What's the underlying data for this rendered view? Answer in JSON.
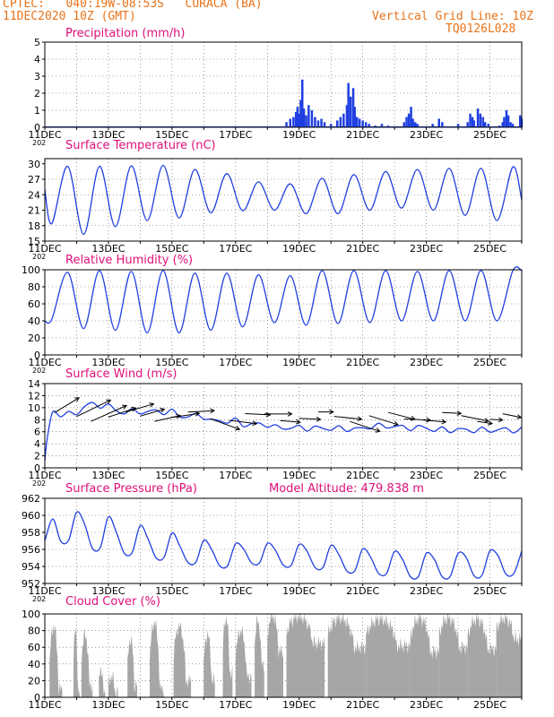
{
  "header": {
    "line1_left": "CPTEC:   040:19W-08:53S   CURACA (BA)",
    "line2_left": "11DEC2020 10Z (GMT)",
    "line1_right": "Vertical Grid Line: 10Z",
    "line2_right": "TQ0126L028"
  },
  "colors": {
    "header": "#e8731a",
    "title": "#e0107a",
    "line": "#1f3fe0",
    "bar": "#1f3fe0",
    "cloud": "#a6a6a6",
    "arrow": "#000000"
  },
  "x_axis": {
    "labels": [
      "11DEC",
      "13DEC",
      "15DEC",
      "17DEC",
      "19DEC",
      "21DEC",
      "23DEC",
      "25DEC"
    ],
    "stub": "202"
  },
  "chart_data": [
    {
      "id": "precip",
      "type": "bar",
      "title": "Precipitation (mm/h)",
      "ylim": [
        0,
        5
      ],
      "yticks": [
        0,
        1,
        2,
        3,
        4,
        5
      ],
      "x_days": [
        0,
        15
      ],
      "bars": [
        [
          7.6,
          0.3
        ],
        [
          7.72,
          0.5
        ],
        [
          7.82,
          0.6
        ],
        [
          7.9,
          0.9
        ],
        [
          7.95,
          1.2
        ],
        [
          8.0,
          0.8
        ],
        [
          8.05,
          1.6
        ],
        [
          8.1,
          2.8
        ],
        [
          8.15,
          1.1
        ],
        [
          8.22,
          0.7
        ],
        [
          8.3,
          1.3
        ],
        [
          8.4,
          1.0
        ],
        [
          8.5,
          0.6
        ],
        [
          8.6,
          0.4
        ],
        [
          8.7,
          0.5
        ],
        [
          8.8,
          0.3
        ],
        [
          9.0,
          0.2
        ],
        [
          9.2,
          0.4
        ],
        [
          9.3,
          0.6
        ],
        [
          9.4,
          0.8
        ],
        [
          9.5,
          1.3
        ],
        [
          9.55,
          2.6
        ],
        [
          9.62,
          1.8
        ],
        [
          9.7,
          2.3
        ],
        [
          9.75,
          1.2
        ],
        [
          9.82,
          0.6
        ],
        [
          9.9,
          0.5
        ],
        [
          10.0,
          0.4
        ],
        [
          10.1,
          0.3
        ],
        [
          10.2,
          0.2
        ],
        [
          10.4,
          0.1
        ],
        [
          10.6,
          0.2
        ],
        [
          10.8,
          0.1
        ],
        [
          11.3,
          0.3
        ],
        [
          11.38,
          0.6
        ],
        [
          11.45,
          0.8
        ],
        [
          11.52,
          1.2
        ],
        [
          11.58,
          0.5
        ],
        [
          11.65,
          0.3
        ],
        [
          11.72,
          0.2
        ],
        [
          12.2,
          0.2
        ],
        [
          12.4,
          0.5
        ],
        [
          12.5,
          0.3
        ],
        [
          13.0,
          0.2
        ],
        [
          13.3,
          0.3
        ],
        [
          13.38,
          0.8
        ],
        [
          13.45,
          0.6
        ],
        [
          13.5,
          0.4
        ],
        [
          13.62,
          1.1
        ],
        [
          13.7,
          0.8
        ],
        [
          13.78,
          0.6
        ],
        [
          13.85,
          0.3
        ],
        [
          13.95,
          0.2
        ],
        [
          14.3,
          0.1
        ],
        [
          14.4,
          0.3
        ],
        [
          14.45,
          0.6
        ],
        [
          14.52,
          1.0
        ],
        [
          14.58,
          0.7
        ],
        [
          14.65,
          0.3
        ],
        [
          14.72,
          0.2
        ],
        [
          14.95,
          0.7
        ],
        [
          15.0,
          0.5
        ]
      ]
    },
    {
      "id": "temp",
      "type": "line",
      "title": "Surface Temperature (nC)",
      "ylim": [
        15,
        31
      ],
      "yticks": [
        15,
        18,
        21,
        24,
        27,
        30
      ],
      "x_days": [
        0,
        15
      ],
      "series": [
        {
          "min": [
            18.4,
            16.3,
            17.8,
            19.0,
            19.5,
            20.5,
            20.9,
            21.0,
            20.3,
            20.3,
            21.0,
            21.4,
            21.0,
            20.0,
            19.0
          ],
          "max": [
            29.5,
            29.5,
            29.6,
            29.7,
            28.9,
            28.1,
            26.5,
            26.1,
            27.2,
            27.9,
            28.5,
            28.9,
            29.1,
            29.1,
            29.4
          ],
          "start": 25.0,
          "end": 23.0
        }
      ]
    },
    {
      "id": "rh",
      "type": "line",
      "title": "Relative Humidity (%)",
      "ylim": [
        0,
        100
      ],
      "yticks": [
        0,
        20,
        40,
        60,
        80,
        100
      ],
      "x_days": [
        0,
        15
      ],
      "series": [
        {
          "min": [
            42,
            31,
            29,
            26,
            26,
            29,
            33,
            38,
            35,
            37,
            38,
            40,
            40,
            40,
            40
          ],
          "max": [
            97,
            99,
            98,
            99,
            96,
            96,
            94,
            93,
            99,
            99,
            99,
            98,
            99,
            99,
            99
          ],
          "start": 40,
          "end": 99
        }
      ]
    },
    {
      "id": "wind",
      "type": "line",
      "title": "Surface Wind (m/s)",
      "ylim": [
        0,
        14
      ],
      "yticks": [
        0,
        2,
        4,
        6,
        8,
        10,
        12,
        14
      ],
      "x_days": [
        0,
        15
      ],
      "series": [
        {
          "start": 1.2,
          "level": [
            9.0,
            10.5,
            9.5,
            9.5,
            8.8,
            8.0,
            7.5,
            7.0,
            7.0,
            7.0,
            7.5,
            7.3,
            7.0,
            7.0,
            7.0
          ],
          "amp": [
            1.5,
            2.0,
            1.8,
            1.5,
            1.3,
            1.2,
            1.3,
            1.3,
            1.5,
            1.7,
            1.7,
            1.7,
            1.7,
            1.7,
            1.5
          ],
          "end": 6.8
        }
      ],
      "arrows": [
        [
          0.3,
          2.3,
          -0.55
        ],
        [
          1.0,
          3.0,
          -0.45
        ],
        [
          1.45,
          3.1,
          -0.42
        ],
        [
          2.0,
          2.3,
          -0.32
        ],
        [
          2.55,
          2.3,
          -0.28
        ],
        [
          3.0,
          2.0,
          -0.28
        ],
        [
          3.45,
          2.1,
          -0.22
        ],
        [
          4.0,
          2.2,
          -0.15
        ],
        [
          4.5,
          2.1,
          -0.05
        ],
        [
          5.2,
          2.5,
          0.35
        ],
        [
          5.8,
          2.2,
          0.12
        ],
        [
          6.3,
          2.0,
          0.05
        ],
        [
          6.9,
          2.2,
          0.0
        ],
        [
          7.4,
          1.6,
          0.08
        ],
        [
          8.0,
          1.7,
          0.05
        ],
        [
          8.6,
          1.2,
          0.0
        ],
        [
          9.1,
          2.2,
          0.1
        ],
        [
          9.6,
          2.5,
          0.32
        ],
        [
          10.2,
          2.4,
          0.3
        ],
        [
          10.8,
          2.2,
          0.25
        ],
        [
          11.3,
          2.1,
          0.05
        ],
        [
          11.9,
          1.8,
          0.08
        ],
        [
          12.5,
          1.5,
          0.05
        ],
        [
          13.1,
          2.2,
          0.2
        ],
        [
          13.6,
          1.2,
          0.15
        ],
        [
          14.0,
          1.0,
          0.05
        ],
        [
          14.4,
          1.5,
          0.2
        ]
      ]
    },
    {
      "id": "pres",
      "type": "line",
      "title": "Surface Pressure (hPa)",
      "title2": "Model Altitude: 479.838 m",
      "ylim": [
        952,
        962
      ],
      "yticks": [
        952,
        954,
        956,
        958,
        960,
        962
      ],
      "x_days": [
        0,
        15
      ],
      "series": [
        {
          "trend": [
            958.5,
            957.8,
            957.0,
            956.3,
            955.6,
            955.2,
            955.4,
            955.2,
            955.0,
            954.6,
            954.3,
            954.0,
            954.0,
            954.2,
            954.4
          ],
          "amp": [
            2.1,
            2.3,
            2.0,
            1.8,
            1.6,
            1.6,
            1.4,
            1.5,
            1.6,
            1.6,
            1.6,
            1.7,
            1.7,
            1.8,
            1.8
          ],
          "start": 957.0,
          "end": 955.8
        }
      ]
    },
    {
      "id": "cloud",
      "type": "area",
      "title": "Cloud Cover (%)",
      "ylim": [
        0,
        100
      ],
      "yticks": [
        0,
        20,
        40,
        60,
        80,
        100
      ],
      "x_days": [
        0,
        15
      ],
      "segments": [
        [
          0.15,
          0.55,
          85,
          10
        ],
        [
          0.9,
          1.1,
          80,
          5
        ],
        [
          1.15,
          1.5,
          75,
          15
        ],
        [
          1.7,
          1.9,
          35,
          5
        ],
        [
          2.0,
          2.3,
          25,
          5
        ],
        [
          2.6,
          2.9,
          70,
          15
        ],
        [
          3.3,
          3.75,
          90,
          10
        ],
        [
          4.05,
          4.6,
          85,
          20
        ],
        [
          5.0,
          5.35,
          75,
          20
        ],
        [
          5.6,
          5.9,
          95,
          30
        ],
        [
          6.0,
          6.5,
          80,
          25
        ],
        [
          6.6,
          6.9,
          92,
          40
        ],
        [
          7.0,
          7.5,
          98,
          55
        ],
        [
          7.6,
          8.8,
          97,
          65
        ],
        [
          8.9,
          10.1,
          95,
          60
        ],
        [
          10.1,
          11.5,
          94,
          62
        ],
        [
          11.5,
          12.4,
          95,
          55
        ],
        [
          12.4,
          13.3,
          95,
          60
        ],
        [
          13.3,
          14.2,
          94,
          58
        ],
        [
          14.2,
          15.0,
          95,
          70
        ]
      ]
    }
  ]
}
